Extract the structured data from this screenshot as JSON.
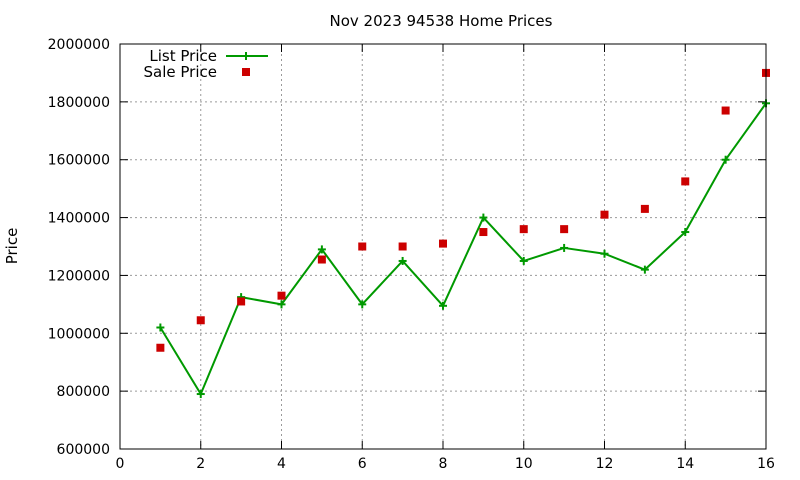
{
  "chart_data": {
    "type": "line",
    "title": "Nov 2023 94538 Home Prices",
    "xlabel": "",
    "ylabel": "Price",
    "xlim": [
      0,
      16
    ],
    "ylim": [
      600000,
      2000000
    ],
    "xticks": [
      "0",
      "2",
      "4",
      "6",
      "8",
      "10",
      "12",
      "14",
      "16"
    ],
    "yticks": [
      "600000",
      "800000",
      "1000000",
      "1200000",
      "1400000",
      "1600000",
      "1800000",
      "2000000"
    ],
    "grid": true,
    "legend_position": "top-left",
    "x": [
      1,
      2,
      3,
      4,
      5,
      6,
      7,
      8,
      9,
      10,
      11,
      12,
      13,
      14,
      15,
      16
    ],
    "series": [
      {
        "name": "List Price",
        "style": "line-plus",
        "color": "#009900",
        "values": [
          1020000,
          790000,
          1125000,
          1100000,
          1290000,
          1100000,
          1250000,
          1095000,
          1400000,
          1250000,
          1295000,
          1275000,
          1220000,
          1350000,
          1600000,
          1795000
        ]
      },
      {
        "name": "Sale Price",
        "style": "square-marker",
        "color": "#cc0000",
        "values": [
          950000,
          1045000,
          1110000,
          1130000,
          1255000,
          1300000,
          1300000,
          1310000,
          1350000,
          1360000,
          1360000,
          1410000,
          1430000,
          1525000,
          1770000,
          1900000
        ]
      }
    ]
  }
}
